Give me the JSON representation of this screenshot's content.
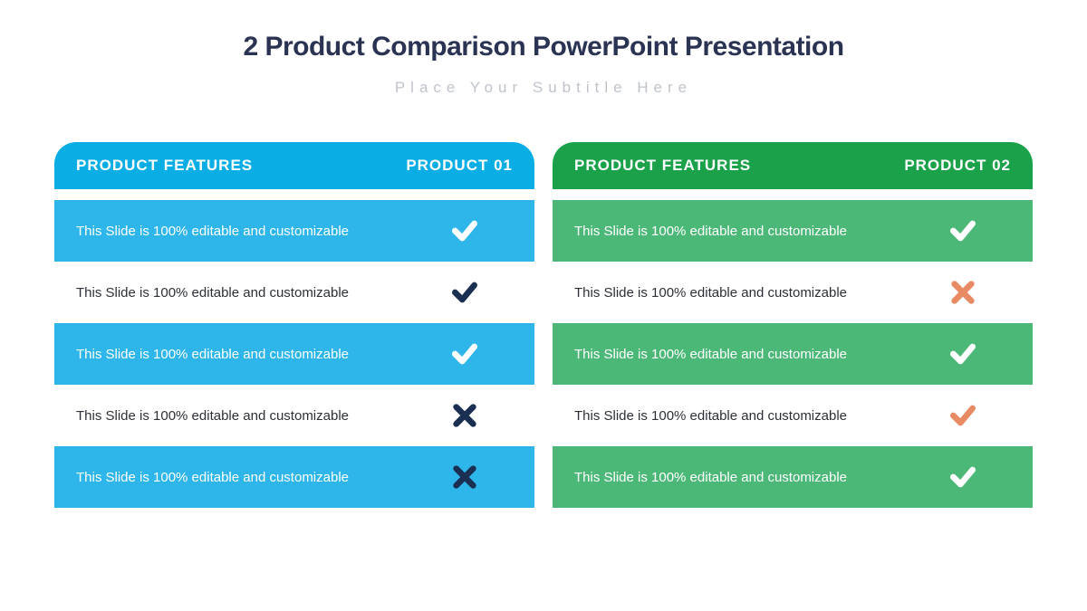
{
  "colors": {
    "title": "#2b3353",
    "subtitle": "#bfc4cb",
    "blue_header": "#0aade4",
    "blue_row": "#2eb6ea",
    "green_header": "#1aa14a",
    "green_row": "#4cb877",
    "white": "#ffffff",
    "dark_text": "#2d3036",
    "dark_navy": "#1a2f52",
    "coral": "#e88a63"
  },
  "title": "2 Product Comparison PowerPoint Presentation",
  "subtitle": "Place Your Subtitle Here",
  "products": [
    {
      "features_label": "PRODUCT FEATURES",
      "product_label": "PRODUCT 01",
      "header_bg": "#0aade4",
      "header_text": "#ffffff",
      "rows": [
        {
          "text": "This Slide is 100% editable and customizable",
          "bg": "#2eb6ea",
          "text_color": "#ffffff",
          "icon": "check",
          "icon_color": "#ffffff"
        },
        {
          "text": "This Slide is 100% editable and customizable",
          "bg": "#ffffff",
          "text_color": "#2d3036",
          "icon": "check",
          "icon_color": "#1a2f52"
        },
        {
          "text": "This Slide is 100% editable and customizable",
          "bg": "#2eb6ea",
          "text_color": "#ffffff",
          "icon": "check",
          "icon_color": "#ffffff"
        },
        {
          "text": "This Slide is 100% editable and customizable",
          "bg": "#ffffff",
          "text_color": "#2d3036",
          "icon": "cross",
          "icon_color": "#1a2f52"
        },
        {
          "text": "This Slide is 100% editable and customizable",
          "bg": "#2eb6ea",
          "text_color": "#ffffff",
          "icon": "cross",
          "icon_color": "#1a2f52"
        }
      ]
    },
    {
      "features_label": "PRODUCT FEATURES",
      "product_label": "PRODUCT 02",
      "header_bg": "#1aa14a",
      "header_text": "#ffffff",
      "rows": [
        {
          "text": "This Slide is 100% editable and customizable",
          "bg": "#4cb877",
          "text_color": "#ffffff",
          "icon": "check",
          "icon_color": "#ffffff"
        },
        {
          "text": "This Slide is 100% editable and customizable",
          "bg": "#ffffff",
          "text_color": "#2d3036",
          "icon": "cross",
          "icon_color": "#e88a63"
        },
        {
          "text": "This Slide is 100% editable and customizable",
          "bg": "#4cb877",
          "text_color": "#ffffff",
          "icon": "check",
          "icon_color": "#ffffff"
        },
        {
          "text": "This Slide is 100% editable and customizable",
          "bg": "#ffffff",
          "text_color": "#2d3036",
          "icon": "check",
          "icon_color": "#e88a63"
        },
        {
          "text": "This Slide is 100% editable and customizable",
          "bg": "#4cb877",
          "text_color": "#ffffff",
          "icon": "check",
          "icon_color": "#ffffff"
        }
      ]
    }
  ]
}
